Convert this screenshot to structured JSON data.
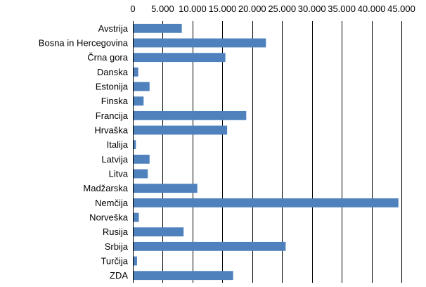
{
  "chart_data": {
    "type": "bar",
    "orientation": "horizontal",
    "categories": [
      "Avstrija",
      "Bosna in Hercegovina",
      "Črna gora",
      "Danska",
      "Estonija",
      "Finska",
      "Francija",
      "Hrvaška",
      "Italija",
      "Latvija",
      "Litva",
      "Madžarska",
      "Nemčija",
      "Norveška",
      "Rusija",
      "Srbija",
      "Turčija",
      "ZDA"
    ],
    "values": [
      8200,
      22300,
      15500,
      900,
      2800,
      1800,
      19000,
      15800,
      500,
      2800,
      2500,
      10800,
      44500,
      1000,
      8500,
      25600,
      700,
      16800
    ],
    "x_ticks": [
      0,
      5000,
      10000,
      15000,
      20000,
      25000,
      30000,
      35000,
      40000,
      45000
    ],
    "x_tick_labels": [
      "0",
      "5.000",
      "10.000",
      "15.000",
      "20.000",
      "25.000",
      "30.000",
      "35.000",
      "40.000",
      "45.000"
    ],
    "xlim": [
      0,
      45000
    ],
    "x_axis_position": "top",
    "grid": true,
    "legend": "none",
    "bar_color": "#4f81bd"
  }
}
